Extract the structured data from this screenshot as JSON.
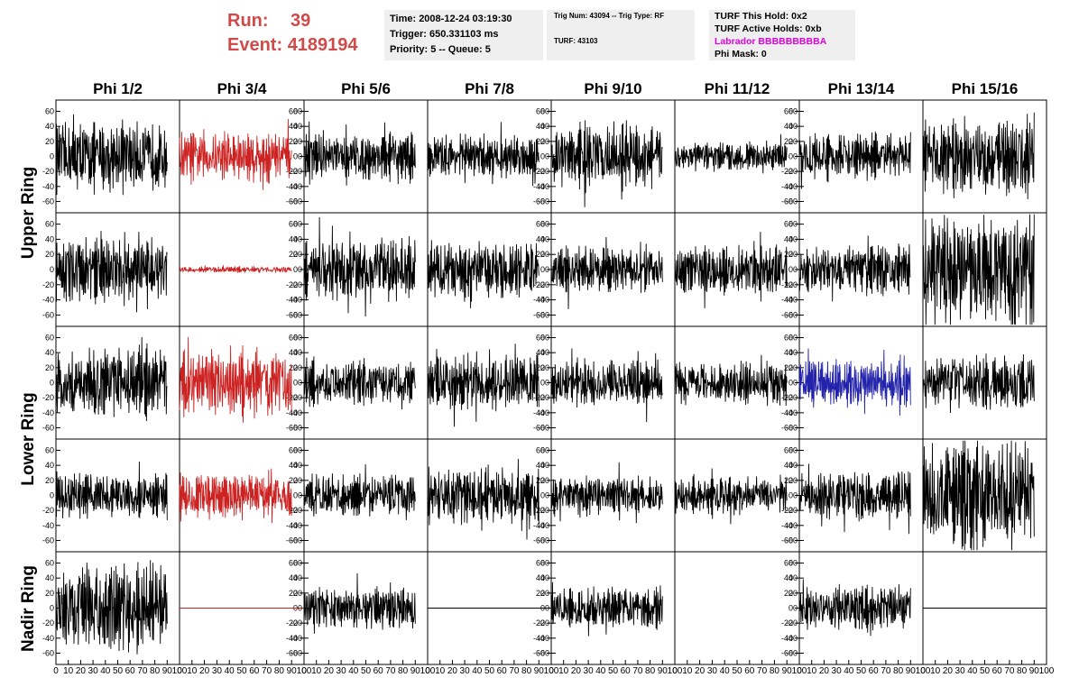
{
  "header": {
    "run_label": "Run:",
    "run_value": "39",
    "event_label": "Event:",
    "event_value": "4189194",
    "time": "Time: 2008-12-24 03:19:30",
    "trigger": "Trigger: 650.331103 ms",
    "priority": "Priority: 5 -- Queue: 5",
    "trig_num": "Trig Num: 43094 -- Trig Type: RF",
    "turf": "TURF: 43103",
    "turf_this_hold": "TURF This Hold: 0x2",
    "turf_active_holds": "TURF Active Holds: 0xb",
    "labrador": "Labrador BBBBBBBBBA",
    "phi_mask": "Phi Mask: 0"
  },
  "colors": {
    "header_red": "#d14a4a",
    "labrador": "#e000e0",
    "trace_red": "#cc2222",
    "trace_blue": "#2222aa",
    "trace_black": "#000000"
  },
  "chart_data": {
    "type": "line",
    "columns": [
      "Phi 1/2",
      "Phi 3/4",
      "Phi 5/6",
      "Phi 7/8",
      "Phi 9/10",
      "Phi 11/12",
      "Phi 13/14",
      "Phi 15/16"
    ],
    "rows": [
      "Upper Ring",
      "Upper Ring",
      "Lower Ring",
      "Lower Ring",
      "Nadir Ring"
    ],
    "row_labels": [
      "Upper Ring",
      "Lower Ring",
      "Nadir Ring"
    ],
    "xlim": [
      0,
      100
    ],
    "ylim": [
      -75,
      75
    ],
    "x_ticks": [
      0,
      10,
      20,
      30,
      40,
      50,
      60,
      70,
      80,
      90,
      100
    ],
    "y_ticks": [
      -60,
      -40,
      -20,
      0,
      20,
      40,
      60
    ],
    "samples": 260,
    "x_end": 90,
    "panels": [
      [
        {
          "amp": 32,
          "color": "black"
        },
        {
          "amp": 24,
          "color": "red"
        },
        {
          "amp": 22,
          "color": "black"
        },
        {
          "amp": 20,
          "color": "black"
        },
        {
          "amp": 30,
          "color": "black"
        },
        {
          "amp": 14,
          "color": "black"
        },
        {
          "amp": 22,
          "color": "black"
        },
        {
          "amp": 36,
          "color": "black"
        }
      ],
      [
        {
          "amp": 30,
          "color": "black"
        },
        {
          "amp": 3,
          "color": "red"
        },
        {
          "amp": 28,
          "color": "black"
        },
        {
          "amp": 28,
          "color": "black"
        },
        {
          "amp": 22,
          "color": "black"
        },
        {
          "amp": 22,
          "color": "black"
        },
        {
          "amp": 22,
          "color": "black"
        },
        {
          "amp": 52,
          "color": "black"
        }
      ],
      [
        {
          "amp": 32,
          "color": "black"
        },
        {
          "amp": 32,
          "color": "red"
        },
        {
          "amp": 22,
          "color": "black"
        },
        {
          "amp": 26,
          "color": "black"
        },
        {
          "amp": 22,
          "color": "black"
        },
        {
          "amp": 20,
          "color": "black"
        },
        {
          "amp": 22,
          "color": "blue"
        },
        {
          "amp": 26,
          "color": "black"
        }
      ],
      [
        {
          "amp": 22,
          "color": "black"
        },
        {
          "amp": 22,
          "color": "red"
        },
        {
          "amp": 20,
          "color": "black"
        },
        {
          "amp": 26,
          "color": "black"
        },
        {
          "amp": 18,
          "color": "black"
        },
        {
          "amp": 18,
          "color": "black"
        },
        {
          "amp": 22,
          "color": "black"
        },
        {
          "amp": 50,
          "color": "black"
        }
      ],
      [
        {
          "amp": 42,
          "color": "black"
        },
        {
          "amp": 0,
          "color": "red"
        },
        {
          "amp": 20,
          "color": "black"
        },
        {
          "amp": 0,
          "color": "black"
        },
        {
          "amp": 20,
          "color": "black"
        },
        {
          "amp": null,
          "color": "black"
        },
        {
          "amp": 20,
          "color": "black"
        },
        {
          "amp": 0,
          "color": "black"
        }
      ]
    ]
  }
}
